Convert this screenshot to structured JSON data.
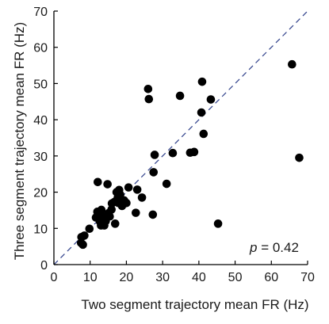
{
  "chart_data": {
    "type": "scatter",
    "title": "",
    "xlabel": "Two segment trajectory mean FR (Hz)",
    "ylabel": "Three segment trajectory mean FR (Hz)",
    "xlim": [
      0,
      70
    ],
    "ylim": [
      0,
      70
    ],
    "xticks": [
      0,
      10,
      20,
      30,
      40,
      50,
      60,
      70
    ],
    "yticks": [
      0,
      10,
      20,
      30,
      40,
      50,
      60,
      70
    ],
    "grid": false,
    "legend": "none",
    "reference_line": {
      "style": "dashed",
      "from": [
        0,
        0
      ],
      "to": [
        70,
        70
      ],
      "color": "#2e3f8a"
    },
    "annotation": {
      "p_symbol": "p",
      "text": " = 0.42",
      "position": "bottom-right"
    },
    "marker_color": "#000000",
    "points": [
      {
        "x": 7.5,
        "y": 6.0
      },
      {
        "x": 7.6,
        "y": 7.6
      },
      {
        "x": 8.0,
        "y": 5.5
      },
      {
        "x": 8.4,
        "y": 8.0
      },
      {
        "x": 9.8,
        "y": 9.9
      },
      {
        "x": 11.6,
        "y": 13.0
      },
      {
        "x": 12.0,
        "y": 14.6
      },
      {
        "x": 12.1,
        "y": 22.8
      },
      {
        "x": 12.7,
        "y": 11.9
      },
      {
        "x": 13.0,
        "y": 10.8
      },
      {
        "x": 13.1,
        "y": 15.1
      },
      {
        "x": 13.4,
        "y": 13.4
      },
      {
        "x": 13.9,
        "y": 10.8
      },
      {
        "x": 14.3,
        "y": 12.0
      },
      {
        "x": 14.8,
        "y": 22.2
      },
      {
        "x": 15.1,
        "y": 14.2
      },
      {
        "x": 15.4,
        "y": 13.3
      },
      {
        "x": 15.9,
        "y": 15.2
      },
      {
        "x": 16.0,
        "y": 16.9
      },
      {
        "x": 16.7,
        "y": 17.3
      },
      {
        "x": 16.9,
        "y": 11.3
      },
      {
        "x": 17.3,
        "y": 20.0
      },
      {
        "x": 17.6,
        "y": 18.4
      },
      {
        "x": 17.8,
        "y": 17.0
      },
      {
        "x": 18.0,
        "y": 20.6
      },
      {
        "x": 18.3,
        "y": 19.3
      },
      {
        "x": 18.8,
        "y": 16.2
      },
      {
        "x": 19.4,
        "y": 17.7
      },
      {
        "x": 20.0,
        "y": 17.0
      },
      {
        "x": 20.6,
        "y": 21.3
      },
      {
        "x": 22.6,
        "y": 14.3
      },
      {
        "x": 23.0,
        "y": 20.7
      },
      {
        "x": 24.3,
        "y": 18.5
      },
      {
        "x": 26.0,
        "y": 48.5
      },
      {
        "x": 26.2,
        "y": 45.7
      },
      {
        "x": 27.3,
        "y": 13.8
      },
      {
        "x": 27.5,
        "y": 25.5
      },
      {
        "x": 27.8,
        "y": 30.3
      },
      {
        "x": 31.1,
        "y": 22.3
      },
      {
        "x": 32.8,
        "y": 30.8
      },
      {
        "x": 34.8,
        "y": 46.6
      },
      {
        "x": 37.6,
        "y": 30.9
      },
      {
        "x": 38.7,
        "y": 31.1
      },
      {
        "x": 40.7,
        "y": 42.0
      },
      {
        "x": 40.9,
        "y": 50.5
      },
      {
        "x": 41.3,
        "y": 36.1
      },
      {
        "x": 43.3,
        "y": 45.6
      },
      {
        "x": 45.3,
        "y": 11.3
      },
      {
        "x": 65.7,
        "y": 55.3
      },
      {
        "x": 67.7,
        "y": 29.5
      }
    ]
  }
}
